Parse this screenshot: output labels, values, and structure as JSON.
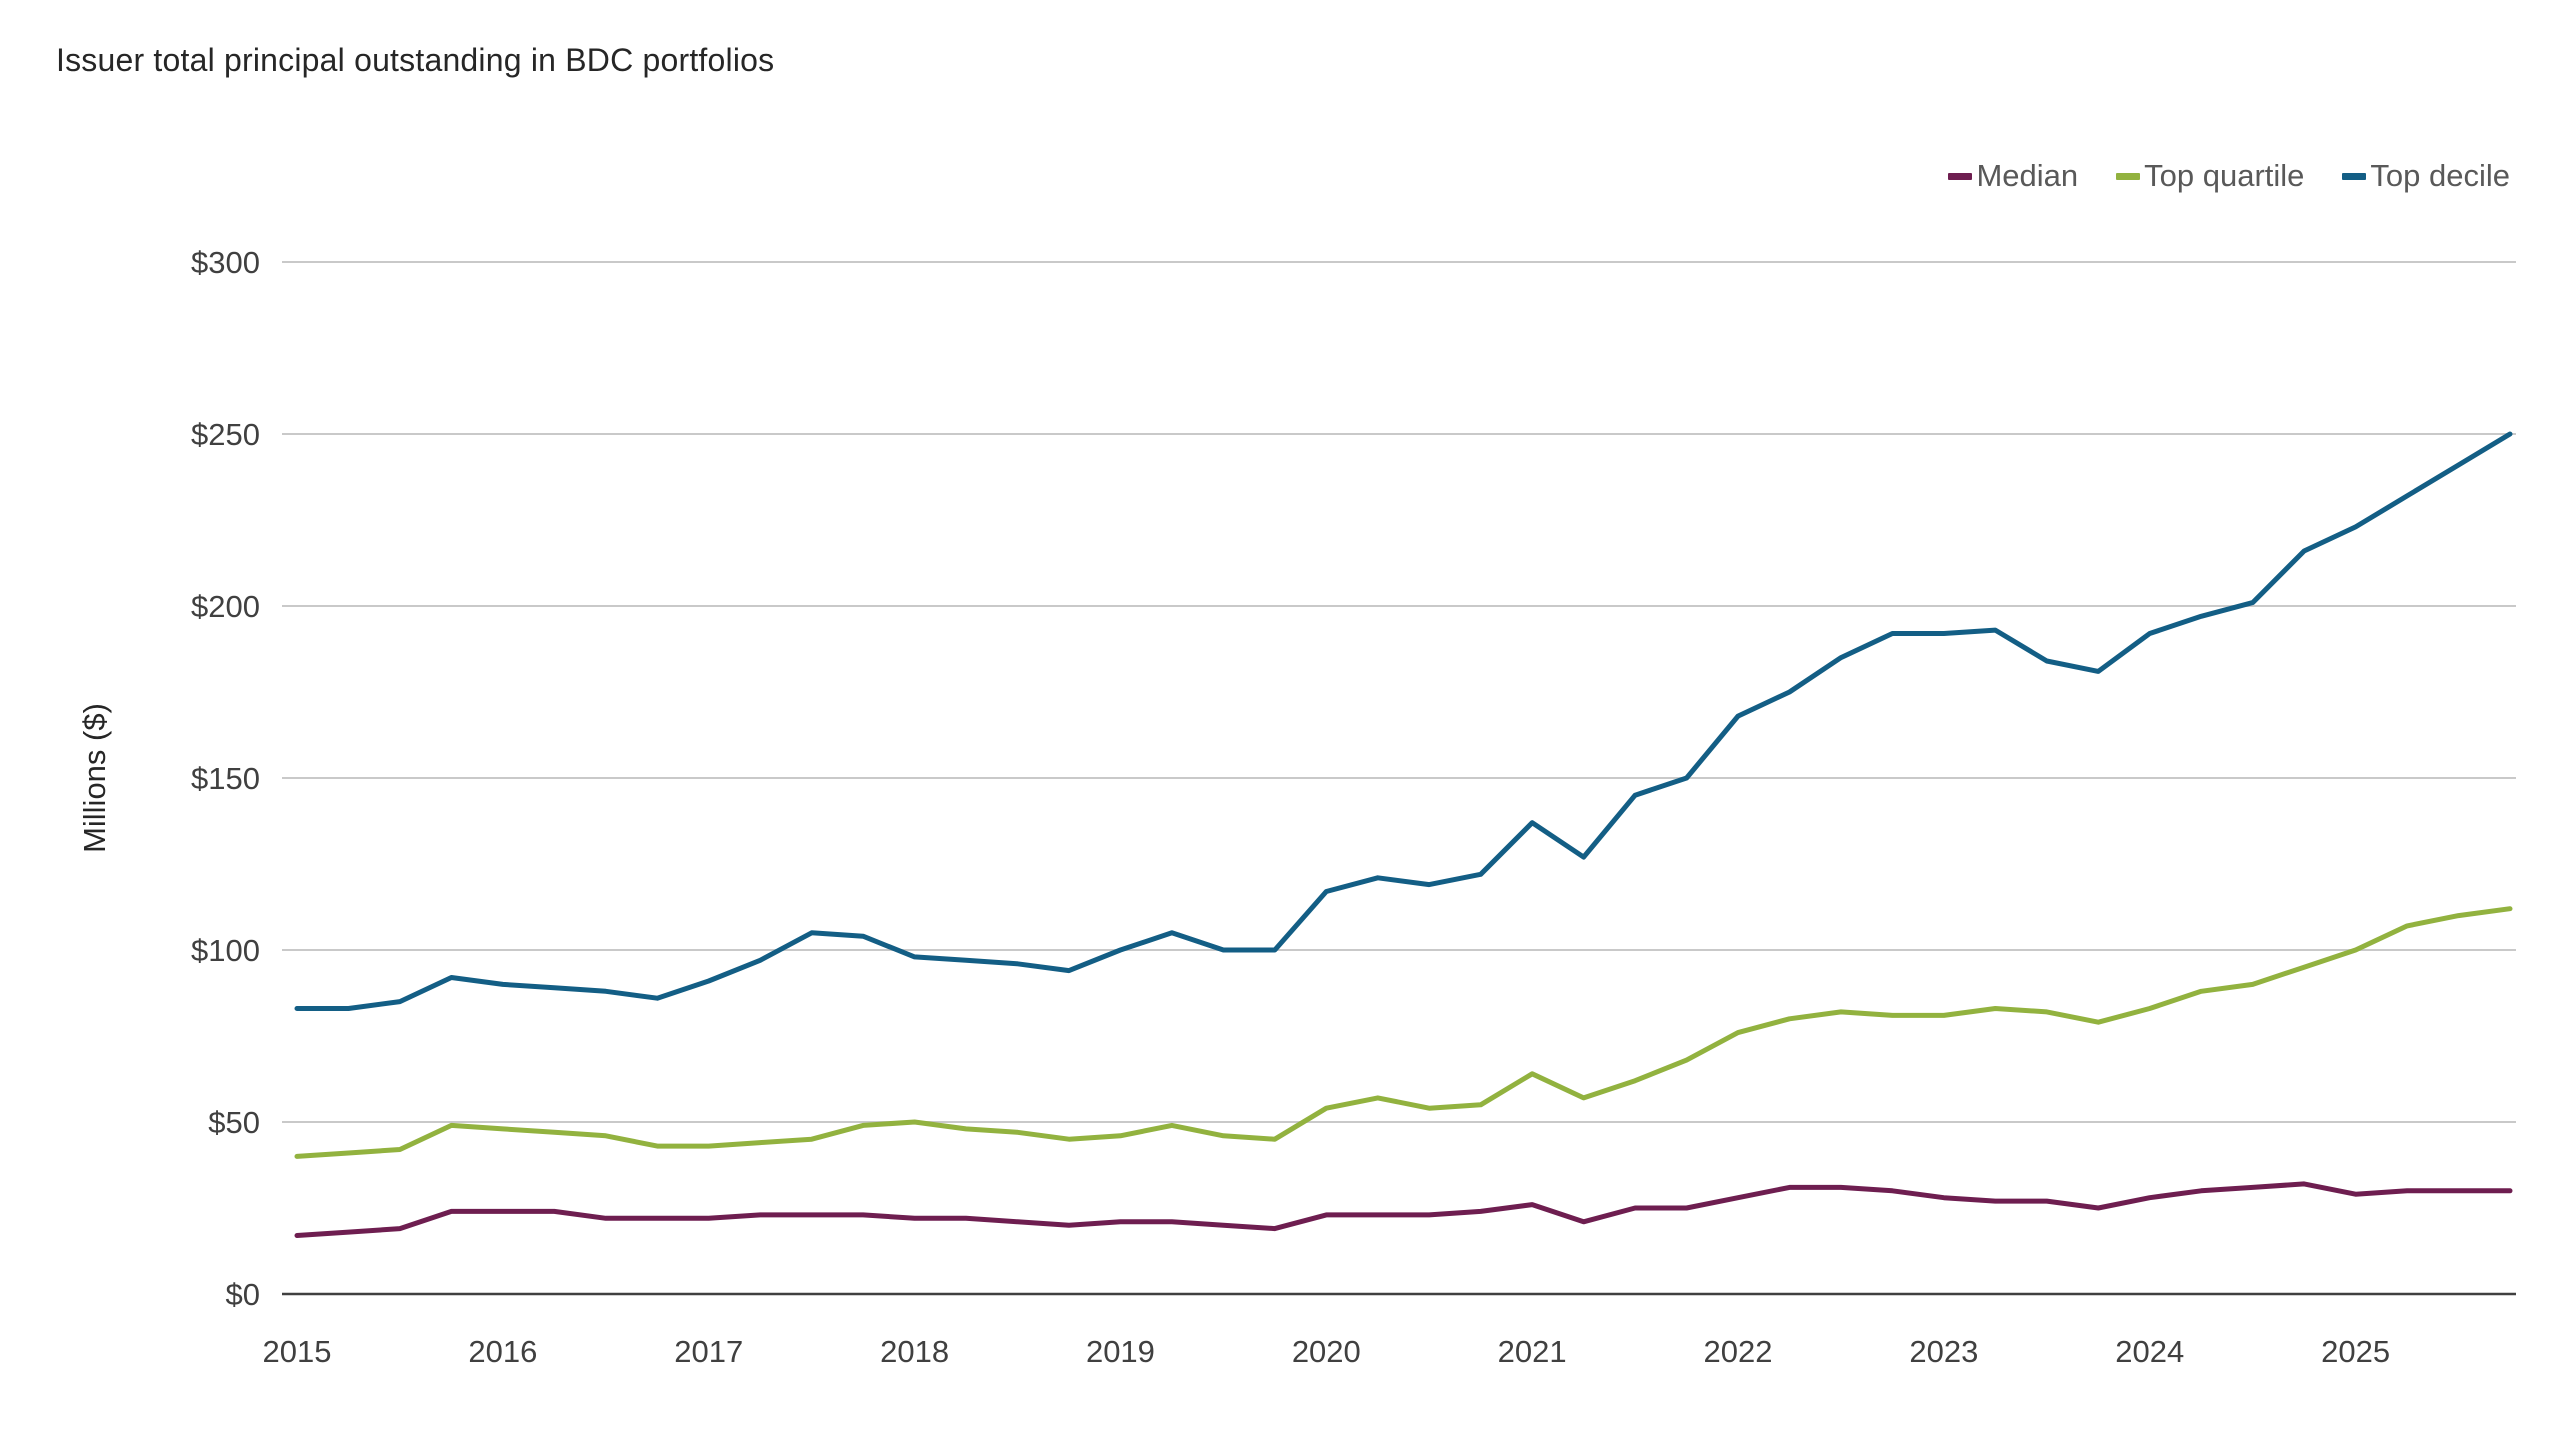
{
  "title": "Issuer total principal outstanding in BDC portfolios",
  "chart_data": {
    "type": "line",
    "title": "Issuer total principal outstanding in BDC portfolios",
    "ylabel": "Millions ($)",
    "xlabel": "",
    "grid": true,
    "legend_position": "top-right",
    "ylim": [
      0,
      300
    ],
    "yticks": [
      0,
      50,
      100,
      150,
      200,
      250,
      300
    ],
    "ytick_labels": [
      "$0",
      "$50",
      "$100",
      "$150",
      "$200",
      "$250",
      "$300"
    ],
    "x_start": 2015.0,
    "x_step_years": 0.25,
    "x_frequency": "quarterly",
    "xlabels": [
      "2015",
      "2016",
      "2017",
      "2018",
      "2019",
      "2020",
      "2021",
      "2022",
      "2023",
      "2024",
      "2025"
    ],
    "series": [
      {
        "name": "Median",
        "color": "#6E1E50",
        "values": [
          17,
          18,
          19,
          24,
          24,
          24,
          22,
          22,
          22,
          23,
          23,
          23,
          22,
          22,
          21,
          20,
          21,
          21,
          20,
          19,
          23,
          23,
          23,
          24,
          26,
          21,
          25,
          25,
          28,
          31,
          31,
          30,
          28,
          27,
          27,
          25,
          28,
          30,
          31,
          32,
          29,
          30,
          30,
          30
        ]
      },
      {
        "name": "Top quartile",
        "color": "#92B23F",
        "values": [
          40,
          41,
          42,
          49,
          48,
          47,
          46,
          43,
          43,
          44,
          45,
          49,
          50,
          48,
          47,
          45,
          46,
          49,
          46,
          45,
          54,
          57,
          54,
          55,
          64,
          57,
          62,
          68,
          76,
          80,
          82,
          81,
          81,
          83,
          82,
          79,
          83,
          88,
          90,
          95,
          100,
          107,
          110,
          112
        ]
      },
      {
        "name": "Top decile",
        "color": "#135E85",
        "values": [
          83,
          83,
          85,
          92,
          90,
          89,
          88,
          86,
          91,
          97,
          105,
          104,
          98,
          97,
          96,
          94,
          100,
          105,
          100,
          100,
          117,
          121,
          119,
          122,
          137,
          127,
          145,
          150,
          168,
          175,
          185,
          192,
          192,
          193,
          184,
          181,
          192,
          197,
          201,
          216,
          223,
          232,
          241,
          250
        ]
      }
    ]
  },
  "style": {
    "gridline_color": "#c9c9c9",
    "axis_line_color": "#404040",
    "tick_label_color": "#404040",
    "title_color": "#262626",
    "legend_text_color": "#595959"
  }
}
